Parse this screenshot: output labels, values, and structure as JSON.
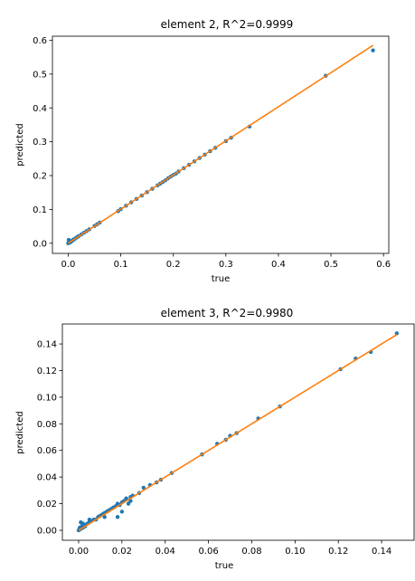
{
  "chart_data": [
    {
      "type": "scatter",
      "title": "element 2, R^2=0.9999",
      "xlabel": "true",
      "ylabel": "predicted",
      "xlim": [
        -0.03,
        0.61
      ],
      "ylim": [
        -0.03,
        0.612
      ],
      "xticks": [
        "0.0",
        "0.1",
        "0.2",
        "0.3",
        "0.4",
        "0.5",
        "0.6"
      ],
      "yticks": [
        "0.0",
        "0.1",
        "0.2",
        "0.3",
        "0.4",
        "0.5",
        "0.6"
      ],
      "grid": false,
      "colors": {
        "points": "#1f77b4",
        "fit_line": "#ff7f0e"
      },
      "fit_line": {
        "x": [
          0.0,
          0.58
        ],
        "y": [
          0.0,
          0.585
        ]
      },
      "series": [
        {
          "x": [
            0.0,
            0.001,
            0.002,
            0.003,
            0.004,
            0.005,
            0.006,
            0.008,
            0.01,
            0.012,
            0.015,
            0.018,
            0.02,
            0.025,
            0.03,
            0.035,
            0.04,
            0.05,
            0.055,
            0.06,
            0.095,
            0.1,
            0.11,
            0.12,
            0.13,
            0.14,
            0.15,
            0.16,
            0.17,
            0.175,
            0.18,
            0.185,
            0.19,
            0.195,
            0.2,
            0.205,
            0.21,
            0.22,
            0.23,
            0.24,
            0.25,
            0.26,
            0.27,
            0.28,
            0.3,
            0.31,
            0.345,
            0.49,
            0.58,
            0.001,
            0.003
          ],
          "y": [
            0.0,
            0.002,
            0.003,
            0.002,
            0.004,
            0.006,
            0.005,
            0.008,
            0.011,
            0.012,
            0.016,
            0.019,
            0.021,
            0.026,
            0.031,
            0.036,
            0.041,
            0.051,
            0.056,
            0.061,
            0.095,
            0.101,
            0.111,
            0.121,
            0.131,
            0.141,
            0.151,
            0.161,
            0.171,
            0.176,
            0.181,
            0.186,
            0.192,
            0.197,
            0.202,
            0.206,
            0.212,
            0.222,
            0.232,
            0.242,
            0.252,
            0.262,
            0.272,
            0.282,
            0.302,
            0.312,
            0.345,
            0.495,
            0.57,
            0.01,
            0.006
          ]
        }
      ]
    },
    {
      "type": "scatter",
      "title": "element 3, R^2=0.9980",
      "xlabel": "true",
      "ylabel": "predicted",
      "xlim": [
        -0.0075,
        0.155
      ],
      "ylim": [
        -0.0075,
        0.155
      ],
      "xticks": [
        "0.00",
        "0.02",
        "0.04",
        "0.06",
        "0.08",
        "0.10",
        "0.12",
        "0.14"
      ],
      "yticks": [
        "0.00",
        "0.02",
        "0.04",
        "0.06",
        "0.08",
        "0.10",
        "0.12",
        "0.14"
      ],
      "grid": false,
      "colors": {
        "points": "#1f77b4",
        "fit_line": "#ff7f0e"
      },
      "fit_line": {
        "x": [
          0.0,
          0.147
        ],
        "y": [
          0.0,
          0.147
        ]
      },
      "series": [
        {
          "x": [
            0.0,
            0.0005,
            0.001,
            0.0015,
            0.002,
            0.0025,
            0.003,
            0.004,
            0.005,
            0.006,
            0.007,
            0.008,
            0.009,
            0.01,
            0.011,
            0.012,
            0.013,
            0.014,
            0.015,
            0.016,
            0.017,
            0.018,
            0.019,
            0.02,
            0.021,
            0.022,
            0.023,
            0.024,
            0.025,
            0.028,
            0.03,
            0.033,
            0.036,
            0.038,
            0.043,
            0.057,
            0.064,
            0.068,
            0.07,
            0.073,
            0.083,
            0.093,
            0.121,
            0.128,
            0.135,
            0.147,
            0.001,
            0.002,
            0.018,
            0.024,
            0.02,
            0.012,
            0.005
          ],
          "y": [
            0.0,
            0.002,
            0.001,
            0.003,
            0.002,
            0.004,
            0.003,
            0.005,
            0.006,
            0.007,
            0.008,
            0.008,
            0.01,
            0.011,
            0.012,
            0.013,
            0.014,
            0.015,
            0.016,
            0.017,
            0.018,
            0.02,
            0.019,
            0.021,
            0.022,
            0.024,
            0.02,
            0.025,
            0.026,
            0.028,
            0.032,
            0.034,
            0.036,
            0.038,
            0.043,
            0.057,
            0.065,
            0.068,
            0.071,
            0.073,
            0.084,
            0.093,
            0.121,
            0.129,
            0.134,
            0.148,
            0.006,
            0.005,
            0.01,
            0.022,
            0.014,
            0.01,
            0.008
          ]
        }
      ]
    }
  ]
}
